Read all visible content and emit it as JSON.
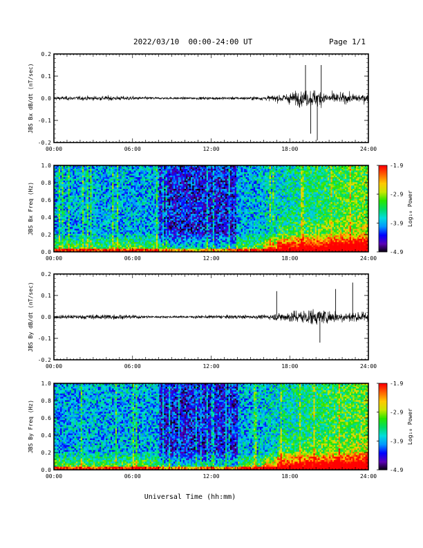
{
  "header": {
    "title": "2022/03/10  00:00-24:00 UT",
    "page": "Page 1/1"
  },
  "footer": {
    "xlabel": "Universal Time (hh:mm)"
  },
  "colorbar": {
    "label": "Log₁₀ Power",
    "ticks": [
      "-1.9",
      "-2.9",
      "-3.9",
      "-4.9"
    ],
    "range": [
      -4.9,
      -1.9
    ],
    "colors": [
      "#000000",
      "#5a00b4",
      "#0000ff",
      "#0096ff",
      "#00dcdc",
      "#00dc64",
      "#28e600",
      "#c8e600",
      "#ffc800",
      "#ff6400",
      "#ff0000"
    ]
  },
  "chart_data": [
    {
      "type": "line",
      "ylabel": "JBS Bx dB/dt (nT/sec)",
      "ylim": [
        -0.2,
        0.2
      ],
      "yticks": [
        "0.2",
        "0.1",
        "0.0",
        "-0.1",
        "-0.2"
      ],
      "xlim": [
        "00:00",
        "24:00"
      ],
      "xticks": [
        "00:00",
        "06:00",
        "12:00",
        "18:00",
        "24:00"
      ],
      "series": [
        {
          "x": [
            "00:00",
            "02:00",
            "04:00",
            "06:00",
            "08:00",
            "10:00",
            "12:00",
            "14:00",
            "16:00",
            "17:00",
            "18:00",
            "19:00",
            "20:00",
            "21:00",
            "22:00",
            "24:00"
          ],
          "amplitude": [
            0.02,
            0.02,
            0.025,
            0.02,
            0.012,
            0.012,
            0.015,
            0.015,
            0.02,
            0.035,
            0.06,
            0.08,
            0.09,
            0.06,
            0.05,
            0.045
          ]
        }
      ],
      "peaks": [
        [
          19.2,
          0.15
        ],
        [
          20.1,
          -0.19
        ],
        [
          20.4,
          0.15
        ],
        [
          19.6,
          -0.16
        ]
      ]
    },
    {
      "type": "heatmap",
      "ylabel": "JBS Bx Freq (Hz)",
      "ylim": [
        0.0,
        1.0
      ],
      "yticks": [
        "1.0",
        "0.8",
        "0.6",
        "0.4",
        "0.2",
        "0.0"
      ],
      "xlim": [
        "00:00",
        "24:00"
      ],
      "xticks": [
        "00:00",
        "06:00",
        "12:00",
        "18:00",
        "24:00"
      ],
      "zlim": [
        -4.9,
        -1.9
      ]
    },
    {
      "type": "line",
      "ylabel": "JBS By dB/dt (nT/sec)",
      "ylim": [
        -0.2,
        0.2
      ],
      "yticks": [
        "0.2",
        "0.1",
        "0.0",
        "-0.1",
        "-0.2"
      ],
      "xlim": [
        "00:00",
        "24:00"
      ],
      "xticks": [
        "00:00",
        "06:00",
        "12:00",
        "18:00",
        "24:00"
      ],
      "series": [
        {
          "x": [
            "00:00",
            "02:00",
            "04:00",
            "06:00",
            "08:00",
            "10:00",
            "12:00",
            "14:00",
            "16:00",
            "17:00",
            "18:00",
            "19:00",
            "20:00",
            "21:00",
            "22:00",
            "24:00"
          ],
          "amplitude": [
            0.02,
            0.022,
            0.03,
            0.02,
            0.012,
            0.012,
            0.018,
            0.02,
            0.02,
            0.04,
            0.06,
            0.08,
            0.085,
            0.07,
            0.06,
            0.05
          ]
        }
      ],
      "peaks": [
        [
          17.0,
          0.12
        ],
        [
          20.3,
          -0.12
        ],
        [
          22.8,
          0.16
        ],
        [
          21.5,
          0.13
        ]
      ]
    },
    {
      "type": "heatmap",
      "ylabel": "JBS By Freq (Hz)",
      "ylim": [
        0.0,
        1.0
      ],
      "yticks": [
        "1.0",
        "0.8",
        "0.6",
        "0.4",
        "0.2",
        "0.0"
      ],
      "xlim": [
        "00:00",
        "24:00"
      ],
      "xticks": [
        "00:00",
        "06:00",
        "12:00",
        "18:00",
        "24:00"
      ],
      "zlim": [
        -4.9,
        -1.9
      ]
    }
  ]
}
